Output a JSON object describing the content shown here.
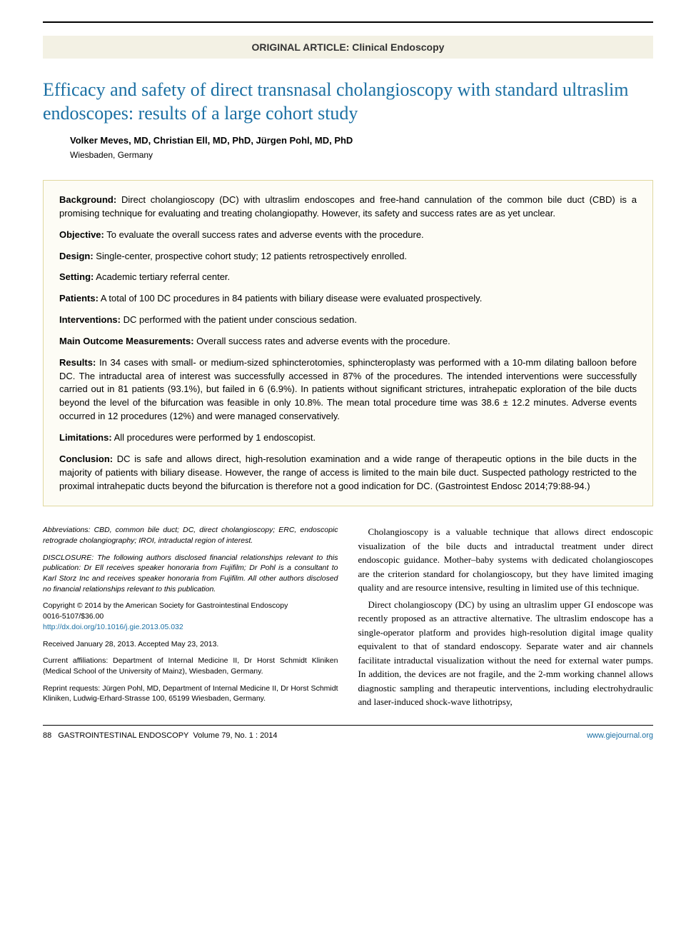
{
  "category": "ORIGINAL ARTICLE: Clinical Endoscopy",
  "title": "Efficacy and safety of direct transnasal cholangioscopy with standard ultraslim endoscopes: results of a large cohort study",
  "authors": "Volker Meves, MD, Christian Ell, MD, PhD, Jürgen Pohl, MD, PhD",
  "affiliation": "Wiesbaden, Germany",
  "abstract": {
    "background": {
      "label": "Background:",
      "text": "Direct cholangioscopy (DC) with ultraslim endoscopes and free-hand cannulation of the common bile duct (CBD) is a promising technique for evaluating and treating cholangiopathy. However, its safety and success rates are as yet unclear."
    },
    "objective": {
      "label": "Objective:",
      "text": "To evaluate the overall success rates and adverse events with the procedure."
    },
    "design": {
      "label": "Design:",
      "text": "Single-center, prospective cohort study; 12 patients retrospectively enrolled."
    },
    "setting": {
      "label": "Setting:",
      "text": "Academic tertiary referral center."
    },
    "patients": {
      "label": "Patients:",
      "text": "A total of 100 DC procedures in 84 patients with biliary disease were evaluated prospectively."
    },
    "interventions": {
      "label": "Interventions:",
      "text": "DC performed with the patient under conscious sedation."
    },
    "outcomes": {
      "label": "Main Outcome Measurements:",
      "text": "Overall success rates and adverse events with the procedure."
    },
    "results": {
      "label": "Results:",
      "text": "In 34 cases with small- or medium-sized sphincterotomies, sphincteroplasty was performed with a 10-mm dilating balloon before DC. The intraductal area of interest was successfully accessed in 87% of the procedures. The intended interventions were successfully carried out in 81 patients (93.1%), but failed in 6 (6.9%). In patients without significant strictures, intrahepatic exploration of the bile ducts beyond the level of the bifurcation was feasible in only 10.8%. The mean total procedure time was 38.6 ± 12.2 minutes. Adverse events occurred in 12 procedures (12%) and were managed conservatively."
    },
    "limitations": {
      "label": "Limitations:",
      "text": "All procedures were performed by 1 endoscopist."
    },
    "conclusion": {
      "label": "Conclusion:",
      "text": "DC is safe and allows direct, high-resolution examination and a wide range of therapeutic options in the bile ducts in the majority of patients with biliary disease. However, the range of access is limited to the main bile duct. Suspected pathology restricted to the proximal intrahepatic ducts beyond the bifurcation is therefore not a good indication for DC. (Gastrointest Endosc 2014;79:88-94.)"
    }
  },
  "leftcol": {
    "abbrev": "Abbreviations: CBD, common bile duct; DC, direct cholangioscopy; ERC, endoscopic retrograde cholangiography; IROI, intraductal region of interest.",
    "disclosure": "DISCLOSURE: The following authors disclosed financial relationships relevant to this publication: Dr Ell receives speaker honoraria from Fujifilm; Dr Pohl is a consultant to Karl Storz Inc and receives speaker honoraria from Fujifilm. All other authors disclosed no financial relationships relevant to this publication.",
    "copyright1": "Copyright © 2014 by the American Society for Gastrointestinal Endoscopy",
    "copyright2": "0016-5107/$36.00",
    "doi": "http://dx.doi.org/10.1016/j.gie.2013.05.032",
    "dates": "Received January 28, 2013. Accepted May 23, 2013.",
    "affil": "Current affiliations: Department of Internal Medicine II, Dr Horst Schmidt Kliniken (Medical School of the University of Mainz), Wiesbaden, Germany.",
    "reprint": "Reprint requests: Jürgen Pohl, MD, Department of Internal Medicine II, Dr Horst Schmidt Kliniken, Ludwig-Erhard-Strasse 100, 65199 Wiesbaden, Germany."
  },
  "body": {
    "p1": "Cholangioscopy is a valuable technique that allows direct endoscopic visualization of the bile ducts and intraductal treatment under direct endoscopic guidance. Mother–baby systems with dedicated cholangioscopes are the criterion standard for cholangioscopy, but they have limited imaging quality and are resource intensive, resulting in limited use of this technique.",
    "p2": "Direct cholangioscopy (DC) by using an ultraslim upper GI endoscope was recently proposed as an attractive alternative. The ultraslim endoscope has a single-operator platform and provides high-resolution digital image quality equivalent to that of standard endoscopy. Separate water and air channels facilitate intraductal visualization without the need for external water pumps. In addition, the devices are not fragile, and the 2-mm working channel allows diagnostic sampling and therapeutic interventions, including electrohydraulic and laser-induced shock-wave lithotripsy,"
  },
  "footer": {
    "page": "88",
    "journal": "GASTROINTESTINAL ENDOSCOPY",
    "issue": "Volume 79, No. 1 : 2014",
    "url": "www.giejournal.org"
  }
}
